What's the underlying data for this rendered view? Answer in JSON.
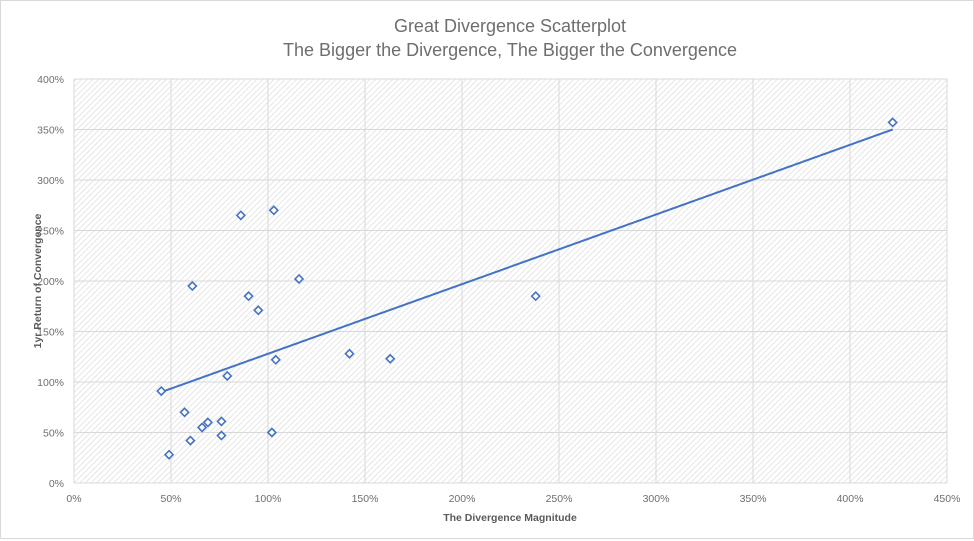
{
  "chart_data": {
    "type": "scatter",
    "title": "Great Divergence Scatterplot",
    "subtitle": "The Bigger the Divergence, The Bigger the Convergence",
    "xlabel": "The Divergence Magnitude",
    "ylabel": "1yr Return of Convergence",
    "xlim": [
      0,
      450
    ],
    "ylim": [
      0,
      400
    ],
    "x_ticks": [
      0,
      50,
      100,
      150,
      200,
      250,
      300,
      350,
      400,
      450
    ],
    "y_ticks": [
      0,
      50,
      100,
      150,
      200,
      250,
      300,
      350,
      400
    ],
    "x_tick_labels": [
      "0%",
      "50%",
      "100%",
      "150%",
      "200%",
      "250%",
      "300%",
      "350%",
      "400%",
      "450%"
    ],
    "y_tick_labels": [
      "0%",
      "50%",
      "100%",
      "150%",
      "200%",
      "250%",
      "300%",
      "350%",
      "400%"
    ],
    "units": "percent",
    "grid": true,
    "legend": "none",
    "marker": "diamond-open",
    "series_color": "#4472c4",
    "points": [
      {
        "x": 45,
        "y": 91
      },
      {
        "x": 79,
        "y": 106
      },
      {
        "x": 57,
        "y": 70
      },
      {
        "x": 66,
        "y": 55
      },
      {
        "x": 69,
        "y": 60
      },
      {
        "x": 76,
        "y": 61
      },
      {
        "x": 76,
        "y": 47
      },
      {
        "x": 60,
        "y": 42
      },
      {
        "x": 49,
        "y": 28
      },
      {
        "x": 102,
        "y": 50
      },
      {
        "x": 86,
        "y": 265
      },
      {
        "x": 103,
        "y": 270
      },
      {
        "x": 116,
        "y": 202
      },
      {
        "x": 61,
        "y": 195
      },
      {
        "x": 90,
        "y": 185
      },
      {
        "x": 95,
        "y": 171
      },
      {
        "x": 104,
        "y": 122
      },
      {
        "x": 142,
        "y": 128
      },
      {
        "x": 163,
        "y": 123
      },
      {
        "x": 238,
        "y": 185
      },
      {
        "x": 422,
        "y": 357
      }
    ],
    "trendline": {
      "type": "linear",
      "start": {
        "x": 45,
        "y": 90
      },
      "end": {
        "x": 422,
        "y": 350
      }
    }
  }
}
